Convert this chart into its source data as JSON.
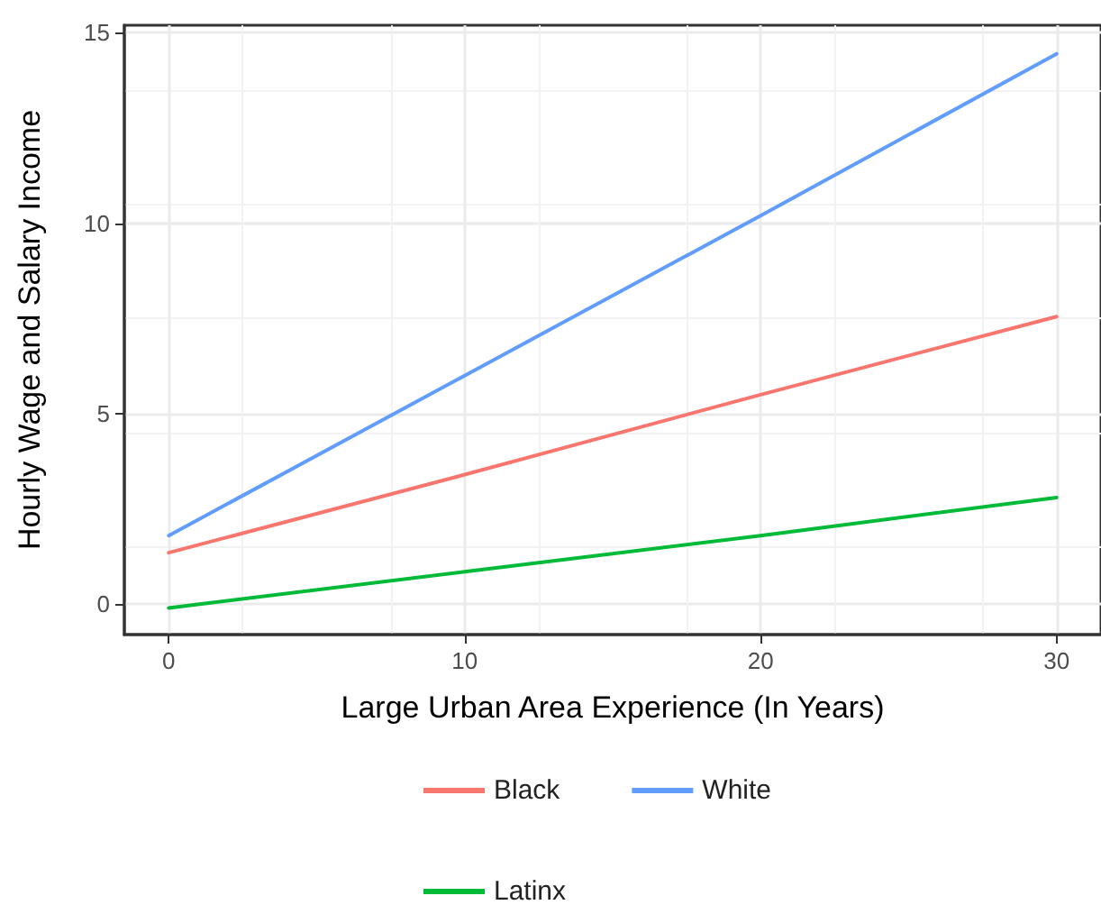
{
  "chart_data": {
    "type": "line",
    "xlabel": "Large Urban Area Experience (In Years)",
    "ylabel": "Hourly Wage and Salary Income",
    "x": [
      0,
      10,
      20,
      30
    ],
    "series": [
      {
        "name": "Black",
        "color": "#f8766d",
        "values": [
          1.35,
          3.4,
          5.5,
          7.55
        ]
      },
      {
        "name": "White",
        "color": "#619cff",
        "values": [
          1.8,
          6.0,
          10.2,
          14.45
        ]
      },
      {
        "name": "Latinx",
        "color": "#00ba38",
        "values": [
          -0.1,
          0.85,
          1.8,
          2.8
        ]
      }
    ],
    "xlim": [
      -1.5,
      31.5
    ],
    "xticks": [
      0,
      10,
      20,
      30
    ],
    "ylim": [
      -0.8,
      15.2
    ],
    "yticks": [
      0,
      5,
      10,
      15
    ],
    "grid": true,
    "legend": "bottom",
    "marker": "none",
    "line_style": "solid"
  }
}
